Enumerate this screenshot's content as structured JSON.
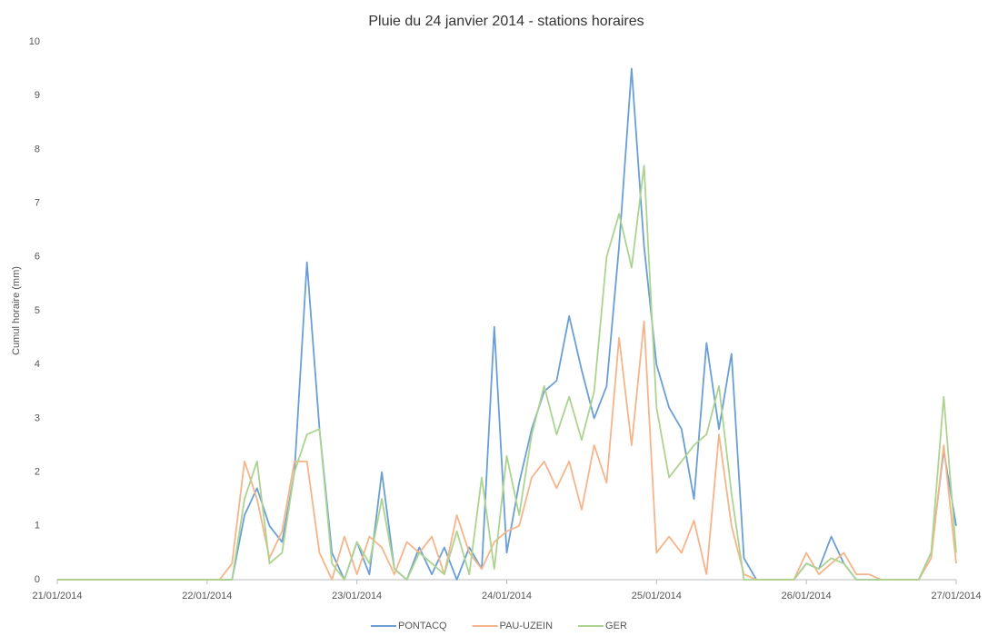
{
  "chart_data": {
    "type": "line",
    "title": "Pluie du 24 janvier 2014 - stations horaires",
    "y_label": "Cumul horaire (mm)",
    "x": [
      0,
      2,
      4,
      6,
      8,
      10,
      12,
      14,
      16,
      18,
      20,
      22,
      24,
      26,
      28,
      30,
      32,
      34,
      36,
      38,
      40,
      42,
      44,
      46,
      48,
      50,
      52,
      54,
      56,
      58,
      60,
      62,
      64,
      66,
      68,
      70,
      72,
      74,
      76,
      78,
      80,
      82,
      84,
      86,
      88,
      90,
      92,
      94,
      96,
      98,
      100,
      102,
      104,
      106,
      108,
      110,
      112,
      114,
      116,
      118,
      120,
      122,
      124,
      126,
      128,
      130,
      132,
      134,
      136,
      138,
      140,
      142,
      144
    ],
    "series": [
      {
        "name": "PONTACQ",
        "color": "#6a9fd4",
        "values": [
          0,
          0,
          0,
          0,
          0,
          0,
          0,
          0,
          0,
          0,
          0,
          0,
          0,
          0,
          0,
          1.2,
          1.7,
          1.0,
          0.7,
          2.0,
          5.9,
          2.8,
          0.5,
          0,
          0.7,
          0.1,
          2.0,
          0.2,
          0,
          0.6,
          0.1,
          0.6,
          0,
          0.6,
          0.2,
          4.7,
          0.5,
          1.8,
          2.8,
          3.5,
          3.7,
          4.9,
          3.9,
          3.0,
          3.6,
          6.2,
          9.5,
          6.2,
          4.0,
          3.2,
          2.8,
          1.5,
          4.4,
          2.8,
          4.2,
          0.4,
          0,
          0,
          0,
          0,
          0.3,
          0.2,
          0.8,
          0.3,
          0,
          0,
          0,
          0,
          0,
          0,
          0.5,
          2.4,
          1.0
        ]
      },
      {
        "name": "PAU-UZEIN",
        "color": "#f5b48a",
        "values": [
          0,
          0,
          0,
          0,
          0,
          0,
          0,
          0,
          0,
          0,
          0,
          0,
          0,
          0,
          0.3,
          2.2,
          1.5,
          0.4,
          0.9,
          2.2,
          2.2,
          0.5,
          0,
          0.8,
          0.1,
          0.8,
          0.6,
          0.1,
          0.7,
          0.5,
          0.8,
          0.1,
          1.2,
          0.5,
          0.2,
          0.7,
          0.9,
          1.0,
          1.9,
          2.2,
          1.7,
          2.2,
          1.3,
          2.5,
          1.8,
          4.5,
          2.5,
          4.8,
          0.5,
          0.8,
          0.5,
          1.1,
          0.1,
          2.7,
          1.0,
          0.1,
          0,
          0,
          0,
          0,
          0.5,
          0.1,
          0.3,
          0.5,
          0.1,
          0.1,
          0,
          0,
          0,
          0,
          0.4,
          2.5,
          0.3
        ]
      },
      {
        "name": "GER",
        "color": "#acd38f",
        "values": [
          0,
          0,
          0,
          0,
          0,
          0,
          0,
          0,
          0,
          0,
          0,
          0,
          0,
          0,
          0,
          1.5,
          2.2,
          0.3,
          0.5,
          2.0,
          2.7,
          2.8,
          0.3,
          0,
          0.7,
          0.3,
          1.5,
          0.2,
          0,
          0.5,
          0.3,
          0.1,
          0.9,
          0.1,
          1.9,
          0.2,
          2.3,
          1.2,
          2.7,
          3.6,
          2.7,
          3.4,
          2.6,
          3.5,
          6.0,
          6.8,
          5.8,
          7.7,
          3.2,
          1.9,
          2.2,
          2.5,
          2.7,
          3.6,
          1.6,
          0,
          0,
          0,
          0,
          0,
          0.3,
          0.2,
          0.4,
          0.3,
          0,
          0,
          0,
          0,
          0,
          0,
          0.5,
          3.4,
          0.5
        ]
      }
    ],
    "xlim": [
      0,
      144
    ],
    "xticks": [
      {
        "value": 0,
        "label": "21/01/2014"
      },
      {
        "value": 24,
        "label": "22/01/2014"
      },
      {
        "value": 48,
        "label": "23/01/2014"
      },
      {
        "value": 72,
        "label": "24/01/2014"
      },
      {
        "value": 96,
        "label": "25/01/2014"
      },
      {
        "value": 120,
        "label": "26/01/2014"
      },
      {
        "value": 144,
        "label": "27/01/2014"
      }
    ],
    "ylim": [
      0,
      10
    ],
    "yticks": [
      0,
      1,
      2,
      3,
      4,
      5,
      6,
      7,
      8,
      9,
      10
    ]
  }
}
